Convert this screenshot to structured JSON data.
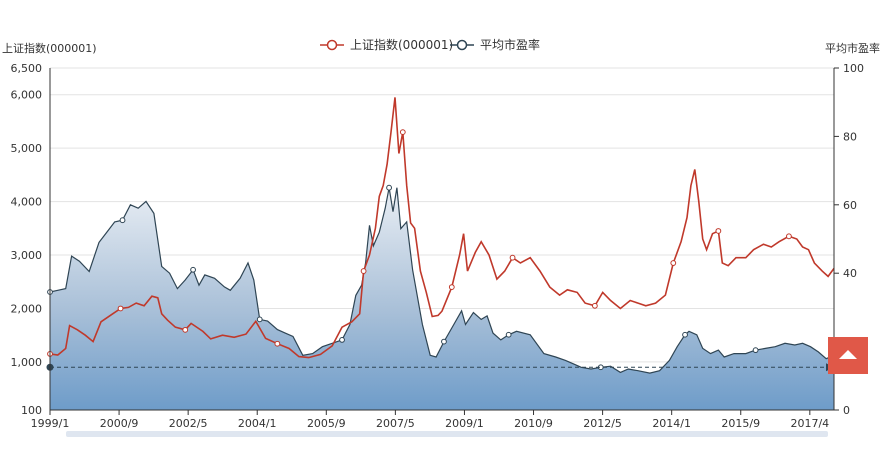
{
  "chart_data": {
    "type": "line",
    "title": "",
    "legend": {
      "position": "top-center",
      "items": [
        {
          "name": "上证指数(000001)",
          "color": "#c0392b"
        },
        {
          "name": "平均市盈率",
          "color": "#2f4554"
        }
      ]
    },
    "left_axis": {
      "name": "上证指数(000001)",
      "min": 100,
      "max": 6500,
      "ticks": [
        "100",
        "1,000",
        "2,000",
        "3,000",
        "4,000",
        "5,000",
        "6,000",
        "6,500"
      ]
    },
    "right_axis": {
      "name": "平均市盈率",
      "min": 0,
      "max": 100,
      "ticks": [
        "0",
        "20",
        "40",
        "60",
        "80",
        "100"
      ]
    },
    "x_ticks": [
      "1999/1",
      "2000/9",
      "2002/5",
      "2004/1",
      "2005/9",
      "2007/5",
      "2009/1",
      "2010/9",
      "2012/5",
      "2014/1",
      "2015/9",
      "2017/4"
    ],
    "x_range": [
      1999.0,
      2019.0
    ],
    "mark_line_pe": 12.5,
    "grid": true,
    "series": [
      {
        "name": "上证指数(000001)",
        "axis": "left",
        "color": "#c0392b",
        "points": [
          [
            1999.0,
            1150
          ],
          [
            1999.2,
            1130
          ],
          [
            1999.4,
            1250
          ],
          [
            1999.5,
            1680
          ],
          [
            1999.7,
            1600
          ],
          [
            1999.9,
            1500
          ],
          [
            2000.1,
            1380
          ],
          [
            2000.3,
            1750
          ],
          [
            2000.6,
            1900
          ],
          [
            2000.8,
            2000
          ],
          [
            2001.0,
            2020
          ],
          [
            2001.2,
            2100
          ],
          [
            2001.4,
            2050
          ],
          [
            2001.6,
            2230
          ],
          [
            2001.75,
            2200
          ],
          [
            2001.85,
            1900
          ],
          [
            2002.0,
            1780
          ],
          [
            2002.2,
            1650
          ],
          [
            2002.45,
            1600
          ],
          [
            2002.6,
            1720
          ],
          [
            2002.9,
            1570
          ],
          [
            2003.1,
            1430
          ],
          [
            2003.4,
            1500
          ],
          [
            2003.7,
            1460
          ],
          [
            2004.0,
            1520
          ],
          [
            2004.25,
            1760
          ],
          [
            2004.5,
            1440
          ],
          [
            2004.8,
            1340
          ],
          [
            2005.1,
            1250
          ],
          [
            2005.35,
            1100
          ],
          [
            2005.6,
            1080
          ],
          [
            2005.9,
            1140
          ],
          [
            2006.2,
            1300
          ],
          [
            2006.45,
            1650
          ],
          [
            2006.7,
            1750
          ],
          [
            2006.9,
            1900
          ],
          [
            2007.0,
            2700
          ],
          [
            2007.15,
            3000
          ],
          [
            2007.3,
            3500
          ],
          [
            2007.4,
            4100
          ],
          [
            2007.5,
            4300
          ],
          [
            2007.6,
            4700
          ],
          [
            2007.7,
            5300
          ],
          [
            2007.8,
            5950
          ],
          [
            2007.9,
            4900
          ],
          [
            2008.0,
            5300
          ],
          [
            2008.1,
            4300
          ],
          [
            2008.2,
            3600
          ],
          [
            2008.3,
            3500
          ],
          [
            2008.45,
            2700
          ],
          [
            2008.6,
            2300
          ],
          [
            2008.75,
            1850
          ],
          [
            2008.9,
            1870
          ],
          [
            2009.0,
            1950
          ],
          [
            2009.25,
            2400
          ],
          [
            2009.45,
            3000
          ],
          [
            2009.55,
            3400
          ],
          [
            2009.65,
            2700
          ],
          [
            2009.85,
            3050
          ],
          [
            2010.0,
            3250
          ],
          [
            2010.2,
            3000
          ],
          [
            2010.4,
            2550
          ],
          [
            2010.6,
            2700
          ],
          [
            2010.8,
            2950
          ],
          [
            2011.0,
            2850
          ],
          [
            2011.25,
            2950
          ],
          [
            2011.5,
            2700
          ],
          [
            2011.75,
            2400
          ],
          [
            2012.0,
            2250
          ],
          [
            2012.2,
            2350
          ],
          [
            2012.45,
            2300
          ],
          [
            2012.65,
            2100
          ],
          [
            2012.9,
            2050
          ],
          [
            2013.1,
            2300
          ],
          [
            2013.3,
            2150
          ],
          [
            2013.55,
            2000
          ],
          [
            2013.8,
            2150
          ],
          [
            2014.0,
            2100
          ],
          [
            2014.2,
            2050
          ],
          [
            2014.45,
            2100
          ],
          [
            2014.7,
            2250
          ],
          [
            2014.9,
            2850
          ],
          [
            2015.1,
            3250
          ],
          [
            2015.25,
            3700
          ],
          [
            2015.35,
            4300
          ],
          [
            2015.45,
            4600
          ],
          [
            2015.55,
            4000
          ],
          [
            2015.65,
            3300
          ],
          [
            2015.75,
            3100
          ],
          [
            2015.9,
            3400
          ],
          [
            2016.05,
            3450
          ],
          [
            2016.15,
            2850
          ],
          [
            2016.3,
            2800
          ],
          [
            2016.5,
            2950
          ],
          [
            2016.75,
            2950
          ],
          [
            2016.95,
            3100
          ],
          [
            2017.2,
            3200
          ],
          [
            2017.4,
            3150
          ],
          [
            2017.6,
            3250
          ],
          [
            2017.85,
            3350
          ],
          [
            2018.05,
            3300
          ],
          [
            2018.2,
            3150
          ],
          [
            2018.35,
            3100
          ],
          [
            2018.5,
            2850
          ],
          [
            2018.7,
            2700
          ],
          [
            2018.85,
            2600
          ],
          [
            2019.0,
            2750
          ]
        ]
      },
      {
        "name": "平均市盈率",
        "axis": "right",
        "color": "#2f4554",
        "points": [
          [
            1999.0,
            34.5
          ],
          [
            1999.2,
            35
          ],
          [
            1999.4,
            35.5
          ],
          [
            1999.55,
            45
          ],
          [
            1999.75,
            43.5
          ],
          [
            2000.0,
            40.5
          ],
          [
            2000.25,
            49
          ],
          [
            2000.45,
            52
          ],
          [
            2000.65,
            55
          ],
          [
            2000.85,
            55.5
          ],
          [
            2001.05,
            60
          ],
          [
            2001.25,
            59
          ],
          [
            2001.45,
            61
          ],
          [
            2001.65,
            57.5
          ],
          [
            2001.85,
            42
          ],
          [
            2002.05,
            40
          ],
          [
            2002.25,
            35.5
          ],
          [
            2002.45,
            38
          ],
          [
            2002.65,
            41
          ],
          [
            2002.8,
            36.5
          ],
          [
            2002.95,
            39.5
          ],
          [
            2003.2,
            38.5
          ],
          [
            2003.45,
            36
          ],
          [
            2003.6,
            35
          ],
          [
            2003.85,
            38.5
          ],
          [
            2004.05,
            43
          ],
          [
            2004.2,
            38
          ],
          [
            2004.35,
            26.5
          ],
          [
            2004.55,
            26
          ],
          [
            2004.8,
            23.5
          ],
          [
            2005.0,
            22.5
          ],
          [
            2005.2,
            21.5
          ],
          [
            2005.45,
            16
          ],
          [
            2005.7,
            16.5
          ],
          [
            2005.95,
            18.5
          ],
          [
            2006.2,
            19.5
          ],
          [
            2006.45,
            20.5
          ],
          [
            2006.65,
            25
          ],
          [
            2006.8,
            33.5
          ],
          [
            2006.95,
            36.5
          ],
          [
            2007.05,
            43
          ],
          [
            2007.15,
            54
          ],
          [
            2007.25,
            48
          ],
          [
            2007.4,
            52
          ],
          [
            2007.55,
            59
          ],
          [
            2007.65,
            65
          ],
          [
            2007.75,
            58
          ],
          [
            2007.85,
            65
          ],
          [
            2007.95,
            53
          ],
          [
            2008.1,
            55
          ],
          [
            2008.25,
            41
          ],
          [
            2008.5,
            25
          ],
          [
            2008.7,
            16
          ],
          [
            2008.85,
            15.5
          ],
          [
            2009.05,
            20
          ],
          [
            2009.3,
            25
          ],
          [
            2009.5,
            29
          ],
          [
            2009.6,
            25
          ],
          [
            2009.8,
            28.5
          ],
          [
            2010.0,
            26.5
          ],
          [
            2010.15,
            27.5
          ],
          [
            2010.3,
            22.5
          ],
          [
            2010.5,
            20.5
          ],
          [
            2010.7,
            22
          ],
          [
            2010.9,
            23
          ],
          [
            2011.25,
            22
          ],
          [
            2011.6,
            16.5
          ],
          [
            2011.9,
            15.5
          ],
          [
            2012.15,
            14.5
          ],
          [
            2012.35,
            13.5
          ],
          [
            2012.55,
            12.5
          ],
          [
            2012.8,
            12
          ],
          [
            2013.05,
            12.5
          ],
          [
            2013.3,
            12.8
          ],
          [
            2013.55,
            11
          ],
          [
            2013.75,
            12
          ],
          [
            2014.0,
            11.5
          ],
          [
            2014.3,
            10.8
          ],
          [
            2014.55,
            11.5
          ],
          [
            2014.8,
            14.5
          ],
          [
            2015.0,
            18.5
          ],
          [
            2015.2,
            22
          ],
          [
            2015.3,
            23
          ],
          [
            2015.5,
            22
          ],
          [
            2015.65,
            18
          ],
          [
            2015.85,
            16.5
          ],
          [
            2016.05,
            17.5
          ],
          [
            2016.2,
            15.5
          ],
          [
            2016.45,
            16.5
          ],
          [
            2016.75,
            16.5
          ],
          [
            2017.0,
            17.5
          ],
          [
            2017.25,
            18
          ],
          [
            2017.5,
            18.5
          ],
          [
            2017.75,
            19.5
          ],
          [
            2018.0,
            19
          ],
          [
            2018.2,
            19.5
          ],
          [
            2018.4,
            18.5
          ],
          [
            2018.6,
            17
          ],
          [
            2018.8,
            15
          ],
          [
            2019.0,
            16
          ]
        ]
      }
    ]
  }
}
